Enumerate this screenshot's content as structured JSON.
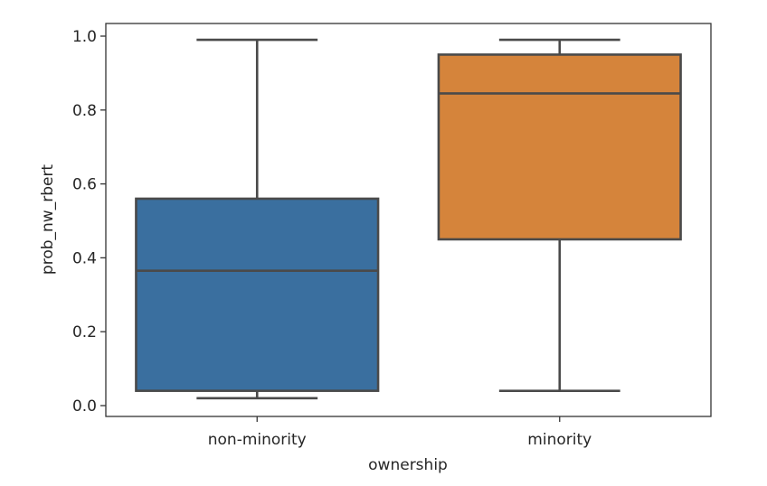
{
  "chart_data": {
    "type": "box",
    "xlabel": "ownership",
    "ylabel": "prob_nw_rbert",
    "ylim": [
      -0.03,
      1.033
    ],
    "y_ticks": [
      "0.0",
      "0.2",
      "0.4",
      "0.6",
      "0.8",
      "1.0"
    ],
    "y_tick_values": [
      0.0,
      0.2,
      0.4,
      0.6,
      0.8,
      1.0
    ],
    "categories": [
      "non-minority",
      "minority"
    ],
    "boxes": [
      {
        "name": "non-minority",
        "whisker_low": 0.02,
        "q1": 0.04,
        "median": 0.365,
        "q3": 0.56,
        "whisker_high": 0.99,
        "color": "#3a6f9f"
      },
      {
        "name": "minority",
        "whisker_low": 0.04,
        "q1": 0.45,
        "median": 0.845,
        "q3": 0.95,
        "whisker_high": 0.99,
        "color": "#d5843b"
      }
    ],
    "grid": false,
    "legend": "none"
  }
}
